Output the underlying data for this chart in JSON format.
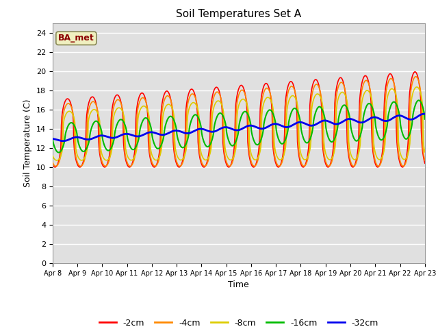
{
  "title": "Soil Temperatures Set A",
  "xlabel": "Time",
  "ylabel": "Soil Temperature (C)",
  "ylim": [
    0,
    25
  ],
  "yticks": [
    0,
    2,
    4,
    6,
    8,
    10,
    12,
    14,
    16,
    18,
    20,
    22,
    24
  ],
  "bg_color": "#e0e0e0",
  "annotation_text": "BA_met",
  "annotation_bg": "#f0f0c0",
  "annotation_border": "#888855",
  "annotation_fg": "#8b0000",
  "depths": [
    "-2cm",
    "-4cm",
    "-8cm",
    "-16cm",
    "-32cm"
  ],
  "colors": [
    "#ff0000",
    "#ff8800",
    "#ddcc00",
    "#00bb00",
    "#0000ee"
  ],
  "linewidths": [
    1.2,
    1.2,
    1.2,
    1.5,
    2.0
  ],
  "xtick_labels": [
    "Apr 8",
    "Apr 9",
    "Apr 10",
    "Apr 11",
    "Apr 12",
    "Apr 13",
    "Apr 14",
    "Apr 15",
    "Apr 16",
    "Apr 17",
    "Apr 18",
    "Apr 19",
    "Apr 20",
    "Apr 21",
    "Apr 22",
    "Apr 23"
  ],
  "pts_per_day": 48
}
